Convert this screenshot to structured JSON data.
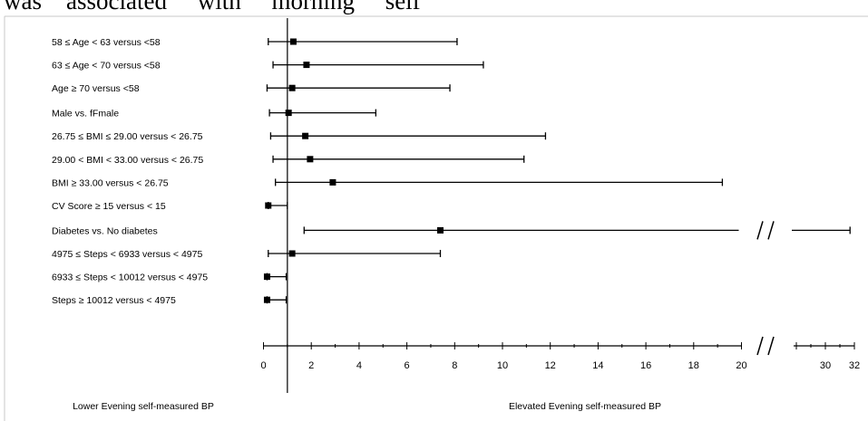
{
  "header_text": "was    associated     with     morning     self",
  "chart_data": {
    "type": "forest",
    "x_axis": {
      "segment1_ticks": [
        "0",
        "2",
        "4",
        "6",
        "8",
        "10",
        "12",
        "14",
        "16",
        "18",
        "20"
      ],
      "segment1_range": [
        0,
        20
      ],
      "segment2_ticks": [
        "30",
        "32"
      ],
      "segment2_range": [
        28,
        32
      ],
      "axis_break": true
    },
    "reference_value": 1,
    "rows": [
      {
        "label": "58 ≤ Age < 63 versus <58",
        "estimate": 1.25,
        "lower": 0.2,
        "upper": 8.1
      },
      {
        "label": "63 ≤ Age < 70 versus <58",
        "estimate": 1.8,
        "lower": 0.4,
        "upper": 9.2
      },
      {
        "label": "Age ≥ 70 versus <58",
        "estimate": 1.2,
        "lower": 0.15,
        "upper": 7.8
      },
      {
        "label": "Male vs. fFmale",
        "estimate": 1.05,
        "lower": 0.25,
        "upper": 4.7
      },
      {
        "label": "26.75 ≤ BMI ≤ 29.00 versus < 26.75",
        "estimate": 1.75,
        "lower": 0.3,
        "upper": 11.8
      },
      {
        "label": "29.00 < BMI < 33.00 versus < 26.75",
        "estimate": 1.95,
        "lower": 0.4,
        "upper": 10.9
      },
      {
        "label": "BMI ≥ 33.00 versus < 26.75",
        "estimate": 2.9,
        "lower": 0.5,
        "upper": 19.2
      },
      {
        "label": "CV Score ≥ 15 versus < 15",
        "estimate": 0.2,
        "lower": 0.2,
        "upper": 1.0
      },
      {
        "label": "Diabetes vs. No diabetes",
        "estimate": 7.4,
        "lower": 1.7,
        "upper": 31.7,
        "broken": true
      },
      {
        "label": "4975 ≤ Steps < 6933 versus < 4975",
        "estimate": 1.2,
        "lower": 0.2,
        "upper": 7.4
      },
      {
        "label": "6933 ≤ Steps < 10012 versus < 4975",
        "estimate": 0.15,
        "lower": 0.15,
        "upper": 0.95
      },
      {
        "label": "Steps ≥ 10012 versus < 4975",
        "estimate": 0.15,
        "lower": 0.15,
        "upper": 0.95
      }
    ],
    "footer_left": "Lower Evening self-measured BP",
    "footer_right": "Elevated Evening self-measured BP"
  }
}
